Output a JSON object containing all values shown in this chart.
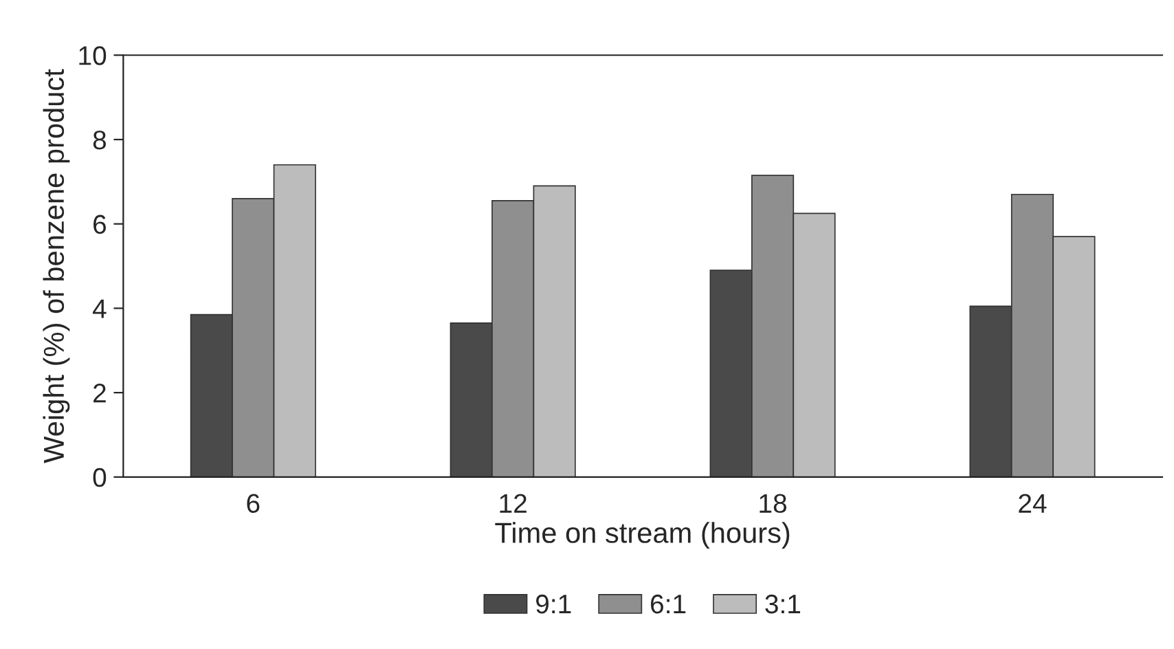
{
  "chart_data": {
    "type": "bar",
    "xlabel": "Time on stream (hours)",
    "ylabel": "Weight (%) of benzene product",
    "categories": [
      "6",
      "12",
      "18",
      "24"
    ],
    "series": [
      {
        "name": "9:1",
        "color": "#4a4a4a",
        "values": [
          3.85,
          3.65,
          4.9,
          4.05
        ]
      },
      {
        "name": "6:1",
        "color": "#8f8f8f",
        "values": [
          6.6,
          6.55,
          7.15,
          6.7
        ]
      },
      {
        "name": "3:1",
        "color": "#bcbcbc",
        "values": [
          7.4,
          6.9,
          6.25,
          5.7
        ]
      }
    ],
    "ylim": [
      0,
      10
    ],
    "yticks": [
      0,
      2,
      4,
      6,
      8,
      10
    ],
    "grid": false,
    "legend": "bottom"
  }
}
